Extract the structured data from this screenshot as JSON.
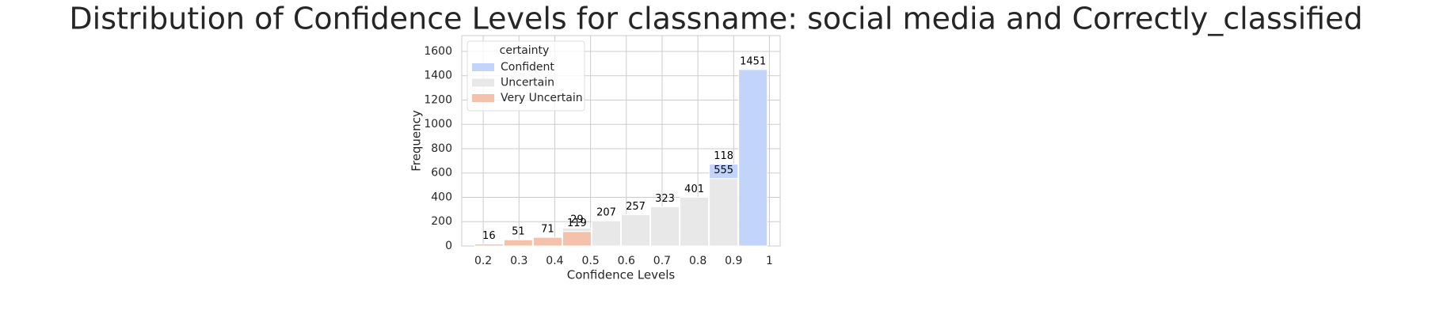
{
  "chart_data": {
    "type": "histogram",
    "title": "Distribution of Confidence Levels for classname: social media and Correctly_classified",
    "xlabel": "Confidence Levels",
    "ylabel": "Frequency",
    "bins": [
      0.175,
      0.257,
      0.339,
      0.421,
      0.503,
      0.585,
      0.667,
      0.749,
      0.831,
      0.913,
      0.995
    ],
    "series": [
      {
        "name": "Very Uncertain",
        "color": "#f4c2ab",
        "values": [
          16,
          51,
          71,
          119,
          null,
          null,
          null,
          null,
          null,
          null
        ]
      },
      {
        "name": "Uncertain",
        "color": "#e8e8e8",
        "values": [
          null,
          null,
          null,
          29,
          207,
          257,
          323,
          401,
          555,
          null
        ]
      },
      {
        "name": "Confident",
        "color": "#c3d4fb",
        "values": [
          null,
          null,
          null,
          null,
          null,
          null,
          null,
          null,
          118,
          1451
        ]
      }
    ],
    "legend_title": "certainty",
    "legend_order": [
      2,
      1,
      0
    ],
    "legend_loc": "upper left",
    "xlim": [
      0.14,
      1.03
    ],
    "ylim": [
      0,
      1730
    ],
    "xticks": [
      0.2,
      0.3,
      0.4,
      0.5,
      0.6,
      0.7,
      0.8,
      0.9,
      1.0
    ],
    "yticks": [
      0,
      200,
      400,
      600,
      800,
      1000,
      1200,
      1400,
      1600
    ],
    "grid": true
  }
}
